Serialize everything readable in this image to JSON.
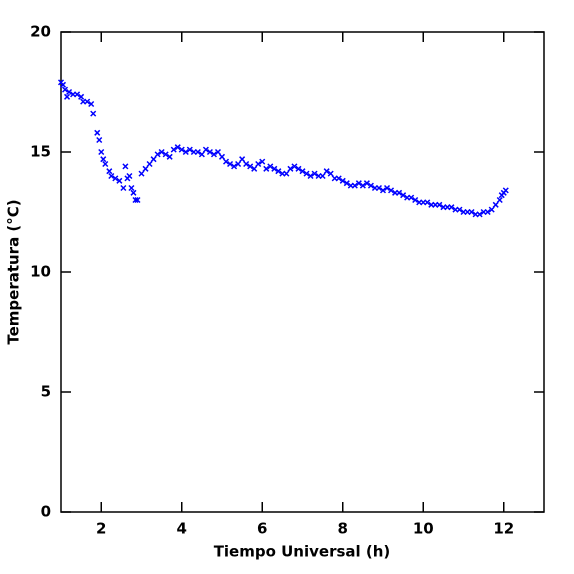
{
  "chart_data": {
    "type": "scatter",
    "xlabel": "Tiempo Universal (h)",
    "ylabel": "Temperatura (°C)",
    "xlim": [
      1,
      13
    ],
    "ylim": [
      0,
      20
    ],
    "xticks": [
      2,
      4,
      6,
      8,
      10,
      12
    ],
    "yticks": [
      0,
      5,
      10,
      15,
      20
    ],
    "marker": "x",
    "series": [
      {
        "color": "#0000ff",
        "x": [
          1.0,
          1.05,
          1.1,
          1.15,
          1.2,
          1.3,
          1.4,
          1.5,
          1.55,
          1.65,
          1.75,
          1.8,
          1.9,
          1.95,
          2.0,
          2.05,
          2.1,
          2.2,
          2.25,
          2.35,
          2.45,
          2.55,
          2.6,
          2.65,
          2.7,
          2.75,
          2.8,
          2.85,
          2.9,
          3.0,
          3.1,
          3.2,
          3.3,
          3.4,
          3.5,
          3.6,
          3.7,
          3.8,
          3.9,
          4.0,
          4.1,
          4.2,
          4.3,
          4.4,
          4.5,
          4.6,
          4.7,
          4.8,
          4.9,
          5.0,
          5.1,
          5.2,
          5.3,
          5.4,
          5.5,
          5.6,
          5.7,
          5.8,
          5.9,
          6.0,
          6.1,
          6.2,
          6.3,
          6.4,
          6.5,
          6.6,
          6.7,
          6.8,
          6.9,
          7.0,
          7.1,
          7.2,
          7.3,
          7.4,
          7.5,
          7.6,
          7.7,
          7.8,
          7.9,
          8.0,
          8.1,
          8.2,
          8.3,
          8.4,
          8.5,
          8.6,
          8.7,
          8.8,
          8.9,
          9.0,
          9.1,
          9.2,
          9.3,
          9.4,
          9.5,
          9.6,
          9.7,
          9.8,
          9.9,
          10.0,
          10.1,
          10.2,
          10.3,
          10.4,
          10.5,
          10.6,
          10.7,
          10.8,
          10.9,
          11.0,
          11.1,
          11.2,
          11.3,
          11.4,
          11.5,
          11.6,
          11.7,
          11.8,
          11.9,
          11.95,
          12.0,
          12.05
        ],
        "values": [
          17.9,
          17.8,
          17.6,
          17.3,
          17.5,
          17.4,
          17.4,
          17.3,
          17.1,
          17.1,
          17.0,
          16.6,
          15.8,
          15.5,
          15.0,
          14.7,
          14.5,
          14.2,
          14.0,
          13.9,
          13.8,
          13.5,
          14.4,
          13.9,
          14.0,
          13.5,
          13.3,
          13.0,
          13.0,
          14.1,
          14.3,
          14.5,
          14.7,
          14.9,
          15.0,
          14.9,
          14.8,
          15.1,
          15.2,
          15.1,
          15.0,
          15.1,
          15.0,
          15.0,
          14.9,
          15.1,
          15.0,
          14.9,
          15.0,
          14.8,
          14.6,
          14.5,
          14.4,
          14.5,
          14.7,
          14.5,
          14.4,
          14.3,
          14.5,
          14.6,
          14.3,
          14.4,
          14.3,
          14.2,
          14.1,
          14.1,
          14.3,
          14.4,
          14.3,
          14.2,
          14.1,
          14.0,
          14.1,
          14.0,
          14.0,
          14.2,
          14.1,
          13.9,
          13.9,
          13.8,
          13.7,
          13.6,
          13.6,
          13.7,
          13.6,
          13.7,
          13.6,
          13.5,
          13.5,
          13.4,
          13.5,
          13.4,
          13.3,
          13.3,
          13.2,
          13.1,
          13.1,
          13.0,
          12.9,
          12.9,
          12.9,
          12.8,
          12.8,
          12.8,
          12.7,
          12.7,
          12.7,
          12.6,
          12.6,
          12.5,
          12.5,
          12.5,
          12.4,
          12.4,
          12.5,
          12.5,
          12.6,
          12.8,
          13.0,
          13.2,
          13.3,
          13.4
        ]
      }
    ]
  }
}
